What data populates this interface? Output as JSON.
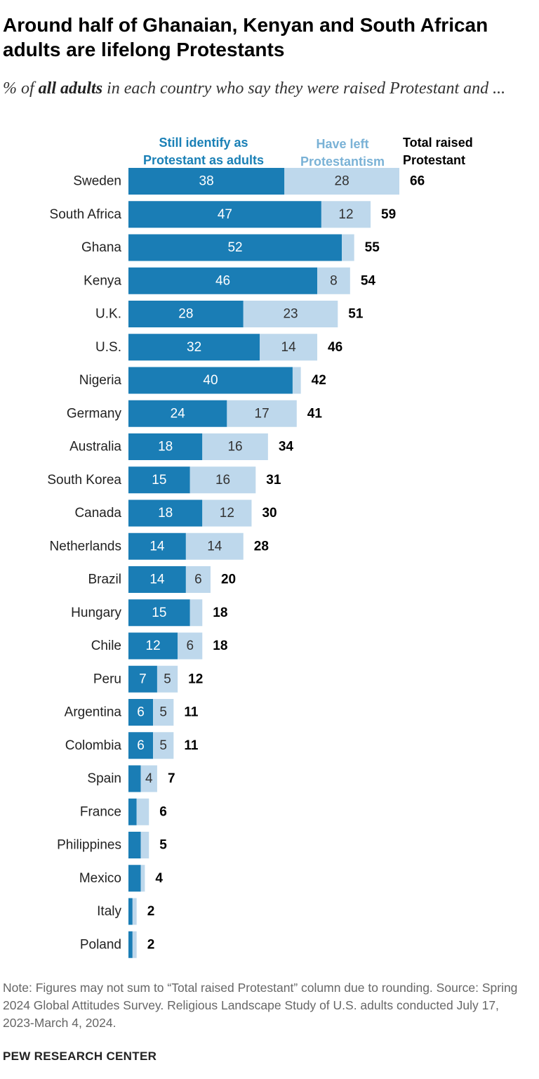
{
  "title": "Around half of Ghanaian, Kenyan and South African adults are lifelong Protestants",
  "subtitle": {
    "before": "% of ",
    "emphasis": "all adults",
    "after": " in each country who say they were raised Protestant and ..."
  },
  "colors": {
    "still": "#1a7db5",
    "left": "#bed8ec",
    "still_label": "#1a80b6",
    "left_label": "#7ab2d6",
    "value_on_dark": "#ffffff",
    "value_on_light": "#333333",
    "total": "#000000"
  },
  "chart_data": {
    "type": "bar",
    "orientation": "horizontal",
    "stacked": true,
    "xlim": [
      0,
      66
    ],
    "categories": [
      "Sweden",
      "South Africa",
      "Ghana",
      "Kenya",
      "U.K.",
      "U.S.",
      "Nigeria",
      "Germany",
      "Australia",
      "South Korea",
      "Canada",
      "Netherlands",
      "Brazil",
      "Hungary",
      "Chile",
      "Peru",
      "Argentina",
      "Colombia",
      "Spain",
      "France",
      "Philippines",
      "Mexico",
      "Italy",
      "Poland"
    ],
    "series": [
      {
        "name": "Still identify as Protestant as adults",
        "values": [
          38,
          47,
          52,
          46,
          28,
          32,
          40,
          24,
          18,
          15,
          18,
          14,
          14,
          15,
          12,
          7,
          6,
          6,
          3,
          2,
          3,
          3,
          1,
          1
        ],
        "labels": [
          "38",
          "47",
          "52",
          "46",
          "28",
          "32",
          "40",
          "24",
          "18",
          "15",
          "18",
          "14",
          "14",
          "15",
          "12",
          "7",
          "6",
          "6",
          "",
          "",
          "",
          "",
          "",
          ""
        ]
      },
      {
        "name": "Have left Protestantism",
        "values": [
          28,
          12,
          3,
          8,
          23,
          14,
          2,
          17,
          16,
          16,
          12,
          14,
          6,
          3,
          6,
          5,
          5,
          5,
          4,
          3,
          2,
          1,
          1,
          1
        ],
        "labels": [
          "28",
          "12",
          "",
          "8",
          "23",
          "14",
          "",
          "17",
          "16",
          "16",
          "12",
          "14",
          "6",
          "",
          "6",
          "5",
          "5",
          "5",
          "4",
          "",
          "",
          "",
          "",
          ""
        ]
      }
    ],
    "totals_header": "Total raised Protestant",
    "totals": [
      "66",
      "59",
      "55",
      "54",
      "51",
      "46",
      "42",
      "41",
      "34",
      "31",
      "30",
      "28",
      "20",
      "18",
      "18",
      "12",
      "11",
      "11",
      "7",
      "6",
      "5",
      "4",
      "2",
      "2"
    ],
    "grid": false,
    "legend": "top"
  },
  "note": "Note: Figures may not sum to “Total raised Protestant” column due to rounding. Source: Spring 2024 Global Attitudes Survey. Religious Landscape Study of U.S. adults conducted July 17, 2023-March 4, 2024.",
  "source_org": "PEW RESEARCH CENTER"
}
